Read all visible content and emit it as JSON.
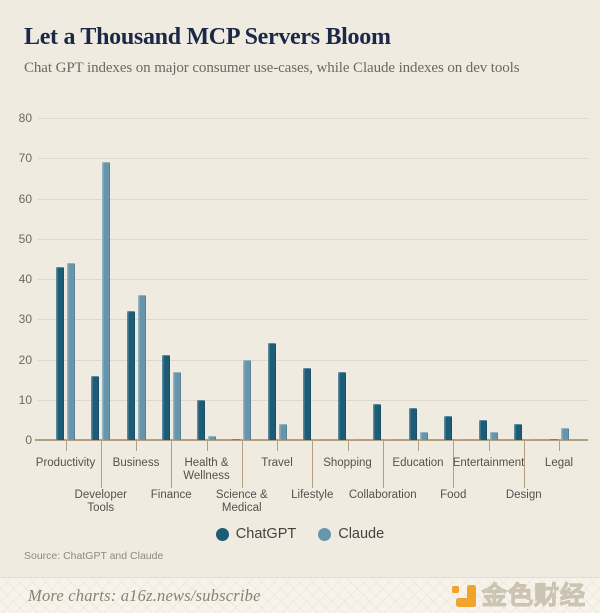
{
  "header": {
    "title": "Let a Thousand MCP Servers Bloom",
    "subtitle": "Chat GPT indexes on major consumer use-cases, while Claude indexes on dev tools"
  },
  "chart_data": {
    "type": "bar",
    "categories": [
      "Productivity",
      "Developer Tools",
      "Business",
      "Finance",
      "Health & Wellness",
      "Science & Medical",
      "Travel",
      "Lifestyle",
      "Shopping",
      "Collaboration",
      "Education",
      "Food",
      "Entertainment",
      "Design",
      "Legal"
    ],
    "series": [
      {
        "name": "ChatGPT",
        "color": "#1d5c76",
        "values": [
          43,
          16,
          32,
          21,
          10,
          0,
          24,
          18,
          17,
          9,
          8,
          6,
          5,
          4,
          0
        ]
      },
      {
        "name": "Claude",
        "color": "#6795ab",
        "values": [
          44,
          69,
          36,
          17,
          1,
          20,
          4,
          0,
          0,
          0,
          2,
          0,
          2,
          0,
          3
        ]
      }
    ],
    "title": "Let a Thousand MCP Servers Bloom",
    "xlabel": "",
    "ylabel": "",
    "ylim": [
      0,
      80
    ],
    "yticks": [
      0,
      10,
      20,
      30,
      40,
      50,
      60,
      70,
      80
    ],
    "grid": "horizontal",
    "legend_position": "bottom"
  },
  "legend": {
    "items": [
      {
        "label": "ChatGPT",
        "color": "#1d5c76"
      },
      {
        "label": "Claude",
        "color": "#6795ab"
      }
    ]
  },
  "source": {
    "text": "Source: ChatGPT and Claude"
  },
  "footer": {
    "more_charts": "More charts: a16z.news/subscribe",
    "watermark_text": "金色财经"
  },
  "colors": {
    "background": "#f0ebe0",
    "footer_background": "#f7f3ea",
    "title": "#1b2949",
    "subtitle": "#6c6963",
    "grid": "#ded8ca",
    "axis": "#b3a083",
    "axis_label": "#6b675e",
    "category_label": "#55514a",
    "chatgpt_bar": "#1d5c76",
    "claude_bar": "#6795ab",
    "legend_text": "#44433f",
    "source_text": "#8f897c",
    "footer_text": "#8a8173",
    "watermark_orange": "#f0a42c"
  }
}
